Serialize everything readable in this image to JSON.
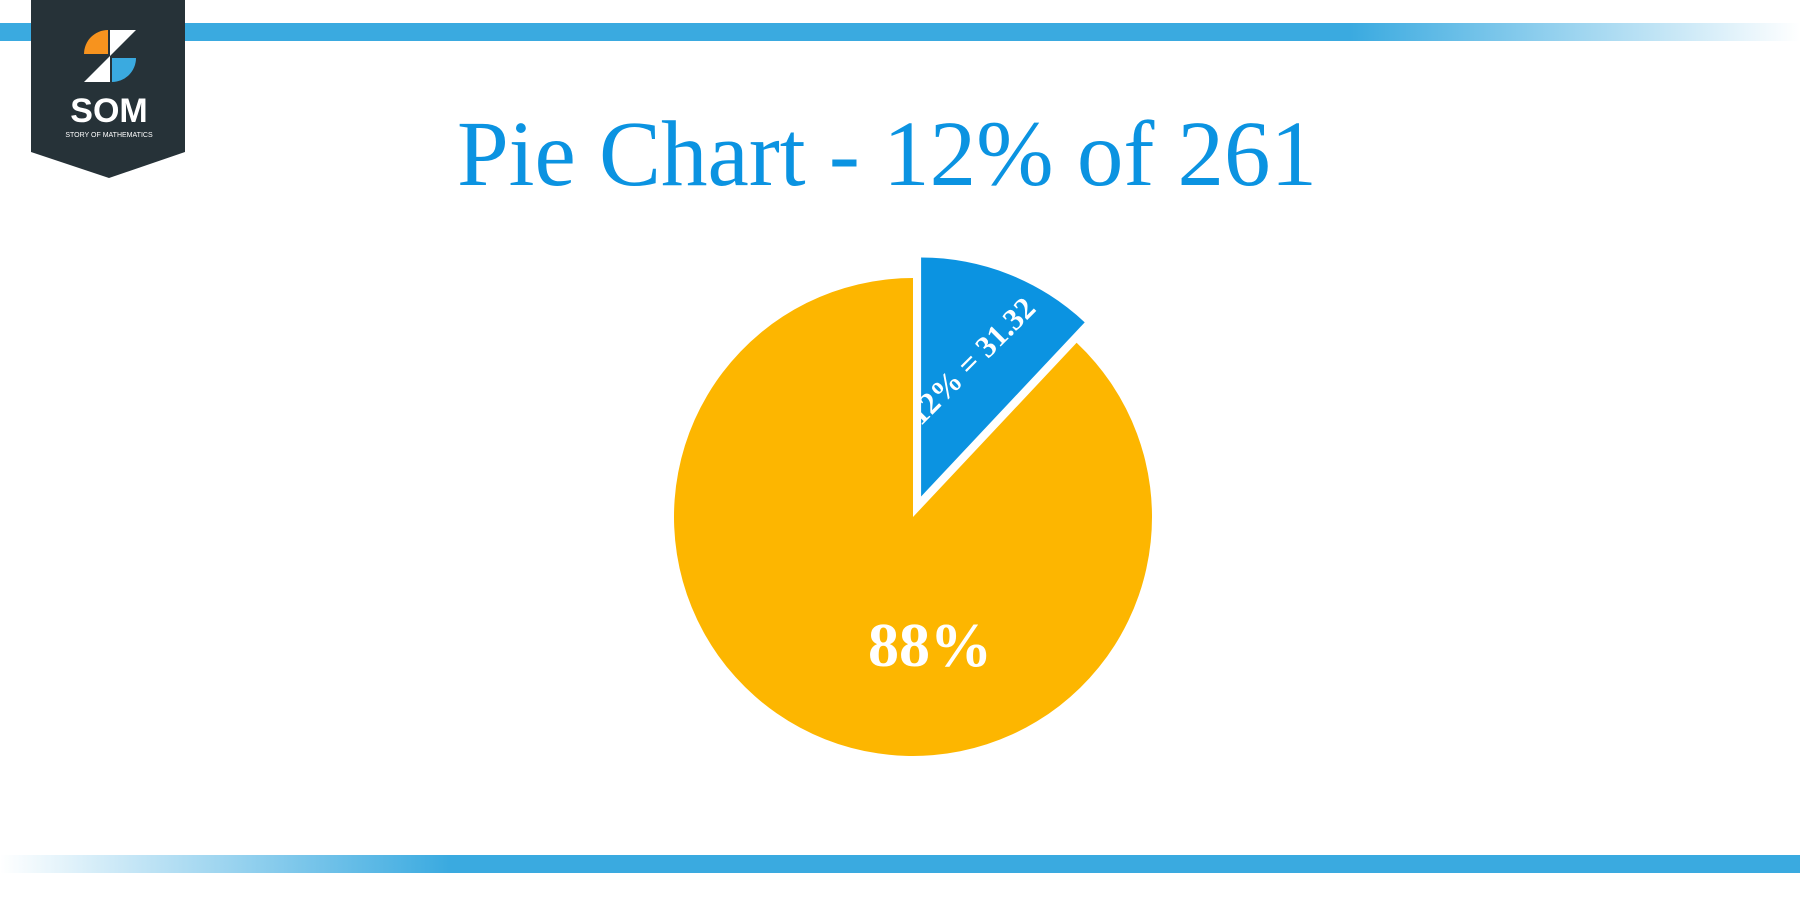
{
  "logo": {
    "name": "SOM",
    "tagline": "STORY OF MATHEMATICS"
  },
  "chart_data": {
    "type": "pie",
    "title": "Pie Chart - 12% of 261",
    "categories": [
      null,
      null
    ],
    "values": [
      12,
      88
    ],
    "value_labels": [
      "12% = 31.32",
      "88%"
    ],
    "colors": [
      "#0b93e1",
      "#fdb600"
    ]
  }
}
